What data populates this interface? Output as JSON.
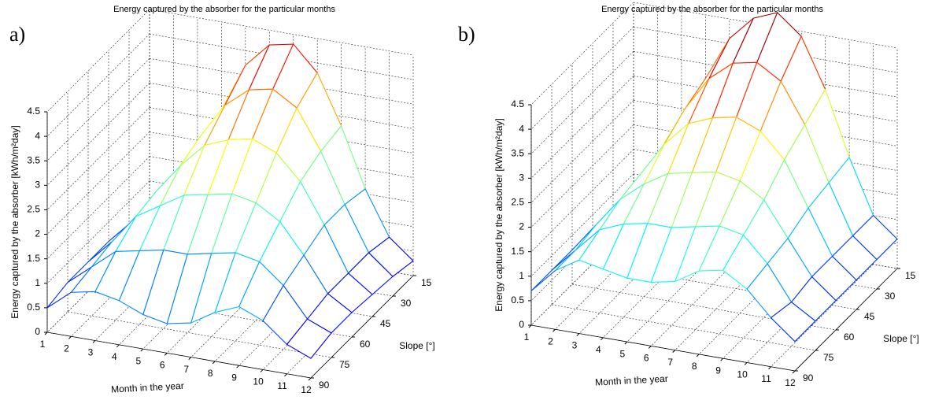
{
  "chart_data": [
    {
      "type": "mesh3d",
      "panel_label": "a)",
      "title": "Energy captured by the absorber for the particular months",
      "xlabel": "Month in the year",
      "ylabel": "Slope [°]",
      "zlabel": "Energy captured by the absorber [kWh/m²day]",
      "x": [
        1,
        2,
        3,
        4,
        5,
        6,
        7,
        8,
        9,
        10,
        11,
        12
      ],
      "y": [
        15,
        30,
        45,
        60,
        75,
        90
      ],
      "xlim": [
        1,
        12
      ],
      "ylim": [
        15,
        90
      ],
      "zlim": [
        0,
        4.5
      ],
      "xticks": [
        1,
        2,
        3,
        4,
        5,
        6,
        7,
        8,
        9,
        10,
        11,
        12
      ],
      "yticks": [
        15,
        30,
        45,
        60,
        75,
        90
      ],
      "zticks": [
        0,
        0.5,
        1,
        1.5,
        2,
        2.5,
        3,
        3.5,
        4,
        4.5
      ],
      "grid": true,
      "colormap": "jet",
      "values": [
        [
          0.4,
          0.9,
          1.7,
          2.7,
          3.7,
          4.2,
          4.3,
          3.8,
          2.8,
          1.6,
          0.7,
          0.3
        ],
        [
          0.5,
          1.0,
          1.8,
          2.6,
          3.3,
          3.7,
          3.8,
          3.5,
          2.7,
          1.7,
          0.8,
          0.4
        ],
        [
          0.6,
          1.1,
          1.8,
          2.4,
          2.9,
          3.1,
          3.2,
          3.0,
          2.5,
          1.7,
          0.8,
          0.45
        ],
        [
          0.6,
          1.1,
          1.7,
          2.0,
          2.3,
          2.4,
          2.5,
          2.4,
          2.1,
          1.5,
          0.8,
          0.5
        ],
        [
          0.6,
          1.0,
          1.4,
          1.5,
          1.6,
          1.6,
          1.7,
          1.8,
          1.7,
          1.3,
          0.7,
          0.5
        ],
        [
          0.5,
          0.9,
          1.0,
          0.9,
          0.7,
          0.6,
          0.7,
          1.0,
          1.2,
          1.0,
          0.6,
          0.4
        ]
      ]
    },
    {
      "type": "mesh3d",
      "panel_label": "b)",
      "title": "Energy captured by the absorber for the particular months",
      "xlabel": "Month in the year",
      "ylabel": "Slope [°]",
      "zlabel": "Energy captured by the absorber [kWh/m²day]",
      "x": [
        1,
        2,
        3,
        4,
        5,
        6,
        7,
        8,
        9,
        10,
        11,
        12
      ],
      "y": [
        15,
        30,
        45,
        60,
        75,
        90
      ],
      "xlim": [
        1,
        12
      ],
      "ylim": [
        15,
        90
      ],
      "zlim": [
        0,
        4.5
      ],
      "xticks": [
        1,
        2,
        3,
        4,
        5,
        6,
        7,
        8,
        9,
        10,
        11,
        12
      ],
      "yticks": [
        15,
        30,
        45,
        60,
        75,
        90
      ],
      "zticks": [
        0,
        0.5,
        1,
        1.5,
        2,
        2.5,
        3,
        3.5,
        4,
        4.5
      ],
      "grid": true,
      "colormap": "jet",
      "values": [
        [
          0.7,
          1.3,
          2.2,
          3.2,
          4.1,
          4.6,
          4.8,
          4.4,
          3.4,
          2.1,
          1.0,
          0.6
        ],
        [
          0.7,
          1.3,
          2.1,
          3.0,
          3.7,
          4.1,
          4.2,
          3.9,
          3.1,
          2.0,
          1.0,
          0.6
        ],
        [
          0.7,
          1.3,
          2.0,
          2.7,
          3.2,
          3.4,
          3.5,
          3.3,
          2.8,
          1.9,
          1.0,
          0.6
        ],
        [
          0.7,
          1.3,
          1.9,
          2.3,
          2.6,
          2.7,
          2.8,
          2.7,
          2.4,
          1.7,
          1.0,
          0.6
        ],
        [
          0.7,
          1.2,
          1.7,
          1.9,
          2.0,
          2.0,
          2.1,
          2.2,
          2.1,
          1.6,
          0.9,
          0.6
        ],
        [
          0.7,
          1.2,
          1.5,
          1.4,
          1.3,
          1.3,
          1.4,
          1.7,
          1.8,
          1.5,
          1.0,
          0.6
        ]
      ]
    }
  ]
}
